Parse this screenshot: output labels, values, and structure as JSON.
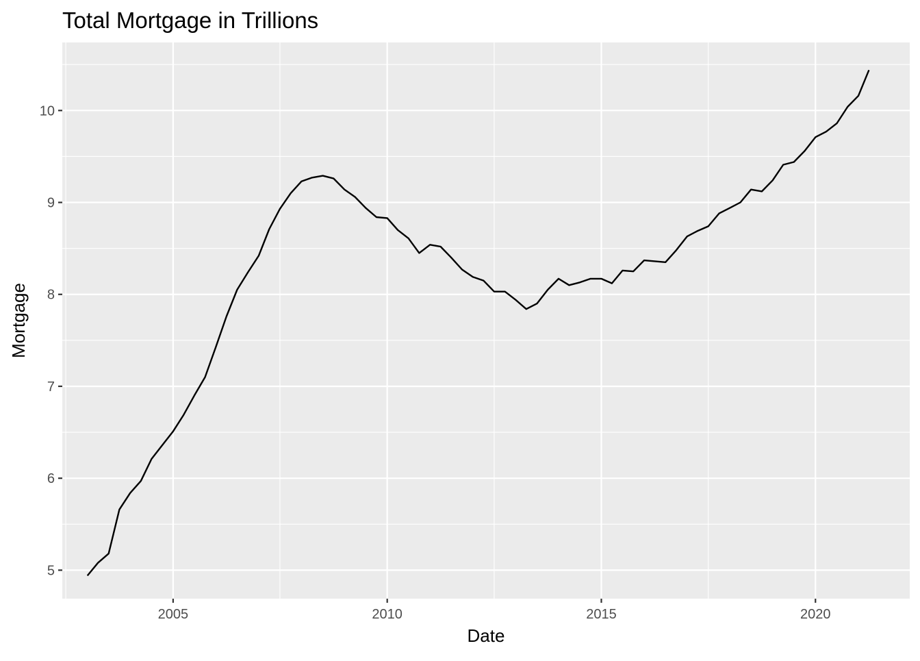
{
  "chart_data": {
    "type": "line",
    "title": "Total Mortgage in Trillions",
    "xlabel": "Date",
    "ylabel": "Mortgage",
    "xlim": [
      "2002-06-01",
      "2022-03-15"
    ],
    "ylim": [
      4.69,
      10.74
    ],
    "x_ticks": [
      {
        "date": "2005-01-01",
        "label": "2005"
      },
      {
        "date": "2010-01-01",
        "label": "2010"
      },
      {
        "date": "2015-01-01",
        "label": "2015"
      },
      {
        "date": "2020-01-01",
        "label": "2020"
      }
    ],
    "x_minor_ticks": [
      "2002-07-01",
      "2007-07-01",
      "2012-07-01",
      "2017-07-01"
    ],
    "y_ticks": [
      5,
      6,
      7,
      8,
      9,
      10
    ],
    "y_tick_labels": [
      "5",
      "6",
      "7",
      "8",
      "9",
      "10"
    ],
    "y_minor_ticks": [
      5.5,
      6.5,
      7.5,
      8.5,
      9.5,
      10.5
    ],
    "grid": true,
    "line_color": "#000000",
    "panel_color": "#ebebeb",
    "series": [
      {
        "x": [
          "2003-01-01",
          "2003-04-01",
          "2003-07-01",
          "2003-10-01",
          "2004-01-01",
          "2004-04-01",
          "2004-07-01",
          "2004-10-01",
          "2005-01-01",
          "2005-04-01",
          "2005-07-01",
          "2005-10-01",
          "2006-01-01",
          "2006-04-01",
          "2006-07-01",
          "2006-10-01",
          "2007-01-01",
          "2007-04-01",
          "2007-07-01",
          "2007-10-01",
          "2008-01-01",
          "2008-04-01",
          "2008-07-01",
          "2008-10-01",
          "2009-01-01",
          "2009-04-01",
          "2009-07-01",
          "2009-10-01",
          "2010-01-01",
          "2010-04-01",
          "2010-07-01",
          "2010-10-01",
          "2011-01-01",
          "2011-04-01",
          "2011-07-01",
          "2011-10-01",
          "2012-01-01",
          "2012-04-01",
          "2012-07-01",
          "2012-10-01",
          "2013-01-01",
          "2013-04-01",
          "2013-07-01",
          "2013-10-01",
          "2014-01-01",
          "2014-04-01",
          "2014-07-01",
          "2014-10-01",
          "2015-01-01",
          "2015-04-01",
          "2015-07-01",
          "2015-10-01",
          "2016-01-01",
          "2016-04-01",
          "2016-07-01",
          "2016-10-01",
          "2017-01-01",
          "2017-04-01",
          "2017-07-01",
          "2017-10-01",
          "2018-01-01",
          "2018-04-01",
          "2018-07-01",
          "2018-10-01",
          "2019-01-01",
          "2019-04-01",
          "2019-07-01",
          "2019-10-01",
          "2020-01-01",
          "2020-04-01",
          "2020-07-01",
          "2020-10-01",
          "2021-01-01",
          "2021-04-01"
        ],
        "y": [
          4.94,
          5.08,
          5.18,
          5.66,
          5.84,
          5.97,
          6.21,
          6.36,
          6.51,
          6.69,
          6.9,
          7.1,
          7.43,
          7.76,
          8.05,
          8.24,
          8.42,
          8.71,
          8.93,
          9.1,
          9.23,
          9.27,
          9.29,
          9.26,
          9.14,
          9.06,
          8.94,
          8.84,
          8.83,
          8.7,
          8.61,
          8.45,
          8.54,
          8.52,
          8.4,
          8.27,
          8.19,
          8.15,
          8.03,
          8.03,
          7.94,
          7.84,
          7.9,
          8.05,
          8.17,
          8.1,
          8.13,
          8.17,
          8.17,
          8.12,
          8.26,
          8.25,
          8.37,
          8.36,
          8.35,
          8.48,
          8.63,
          8.69,
          8.74,
          8.88,
          8.94,
          9.0,
          9.14,
          9.12,
          9.24,
          9.41,
          9.44,
          9.56,
          9.71,
          9.77,
          9.86,
          10.04,
          10.16,
          10.44
        ]
      }
    ]
  }
}
